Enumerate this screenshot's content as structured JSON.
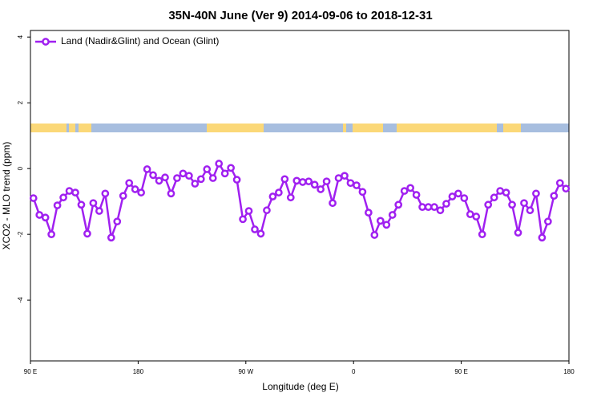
{
  "chart_data": {
    "type": "line",
    "title": "35N-40N June (Ver 9)   2014-09-06 to 2018-12-31",
    "x_label": "Longitude (deg E)",
    "y_label": "XCO2 - MLO trend (ppm)",
    "xlim": [
      90,
      540
    ],
    "ylim": [
      -5.85,
      4.2
    ],
    "xticks": [
      {
        "value": 90,
        "label": "90 E"
      },
      180,
      {
        "value": 270,
        "label": "90 W"
      },
      {
        "value": 360,
        "label": "0"
      },
      {
        "value": 450,
        "label": "90 E"
      },
      {
        "value": 540,
        "label": "180"
      }
    ],
    "yticks": [
      -4,
      -2,
      0,
      2,
      4
    ],
    "grid": false,
    "legend": "top-left",
    "markers": true,
    "x": [
      92.5,
      97.5,
      102.5,
      107.5,
      112.5,
      117.5,
      122.5,
      127.5,
      132.5,
      137.5,
      142.5,
      147.5,
      152.5,
      157.5,
      162.5,
      167.5,
      172.5,
      177.5,
      182.5,
      187.5,
      192.5,
      197.5,
      202.5,
      207.5,
      212.5,
      217.5,
      222.5,
      227.5,
      232.5,
      237.5,
      242.5,
      247.5,
      252.5,
      257.5,
      262.5,
      267.5,
      272.5,
      277.5,
      282.5,
      287.5,
      292.5,
      297.5,
      302.5,
      307.5,
      312.5,
      317.5,
      322.5,
      327.5,
      332.5,
      337.5,
      342.5,
      347.5,
      352.5,
      357.5,
      362.5,
      367.5,
      372.5,
      377.5,
      382.5,
      387.5,
      392.5,
      397.5,
      402.5,
      407.5,
      412.5,
      417.5,
      422.5,
      427.5,
      432.5,
      437.5,
      442.5,
      447.5,
      452.5,
      457.5,
      462.5,
      467.5,
      472.5,
      477.5,
      482.5,
      487.5,
      492.5,
      497.5,
      502.5,
      507.5,
      512.5,
      517.5,
      522.5,
      527.5,
      532.5,
      537.5
    ],
    "series": [
      {
        "name": "Land (Nadir&Glint) and Ocean (Glint)",
        "color": "#a020f0",
        "values": [
          -0.9,
          -1.41,
          -1.49,
          -2.0,
          -1.12,
          -0.88,
          -0.68,
          -0.73,
          -1.1,
          -1.98,
          -1.05,
          -1.29,
          -0.76,
          -2.1,
          -1.61,
          -0.83,
          -0.44,
          -0.63,
          -0.73,
          -0.02,
          -0.2,
          -0.37,
          -0.27,
          -0.76,
          -0.29,
          -0.15,
          -0.22,
          -0.46,
          -0.32,
          -0.02,
          -0.29,
          0.15,
          -0.15,
          0.02,
          -0.34,
          -1.54,
          -1.29,
          -1.85,
          -1.98,
          -1.27,
          -0.85,
          -0.73,
          -0.32,
          -0.88,
          -0.37,
          -0.41,
          -0.39,
          -0.49,
          -0.63,
          -0.39,
          -1.05,
          -0.29,
          -0.22,
          -0.44,
          -0.51,
          -0.71,
          -1.34,
          -2.02,
          -1.59,
          -1.71,
          -1.41,
          -1.1,
          -0.68,
          -0.59,
          -0.8,
          -1.17,
          -1.17,
          -1.17,
          -1.27,
          -1.07,
          -0.85,
          -0.76,
          -0.9,
          -1.39,
          -1.46,
          -2.0,
          -1.1,
          -0.88,
          -0.68,
          -0.73,
          -1.1,
          -1.95,
          -1.05,
          -1.27,
          -0.76,
          -2.1,
          -1.61,
          -0.83,
          -0.44,
          -0.61
        ]
      }
    ]
  }
}
